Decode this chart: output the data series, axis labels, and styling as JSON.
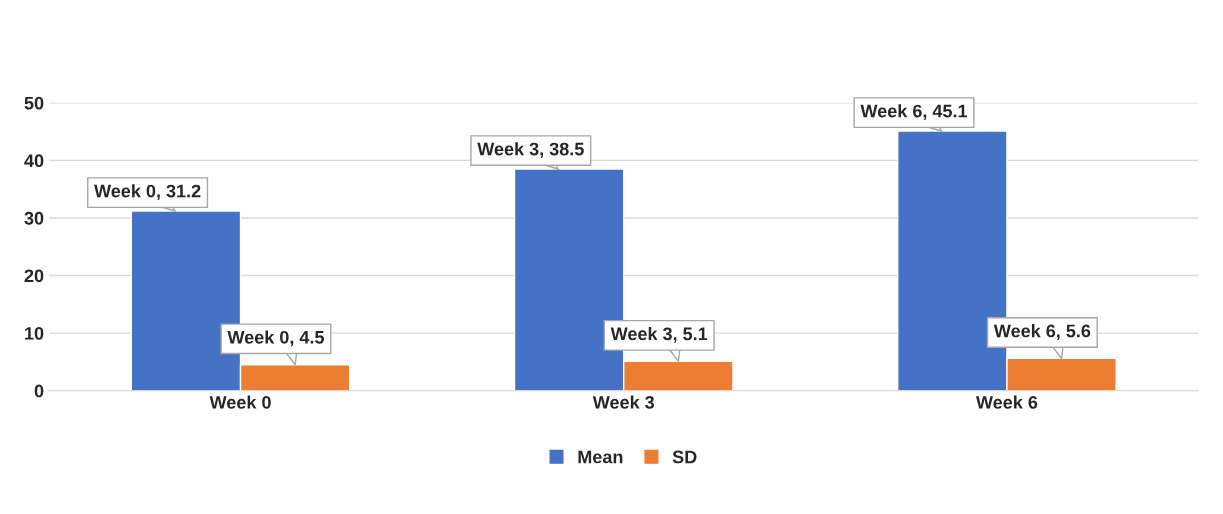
{
  "chart_data": {
    "type": "bar",
    "categories": [
      "Week 0",
      "Week 3",
      "Week 6"
    ],
    "series": [
      {
        "name": "Mean",
        "color": "#4472c4",
        "values": [
          31.2,
          38.5,
          45.1
        ],
        "value_labels": [
          "Week 0, 31.2",
          "Week 3, 38.5",
          "Week 6, 45.1"
        ]
      },
      {
        "name": "SD",
        "color": "#ed7d31",
        "values": [
          4.5,
          5.1,
          5.6
        ],
        "value_labels": [
          "Week 0, 4.5",
          "Week 3, 5.1",
          "Week 6, 5.6"
        ]
      }
    ],
    "ylim": [
      0,
      50
    ],
    "yticks": [
      0,
      10,
      20,
      30,
      40,
      50
    ],
    "grid": "y",
    "legend": "bottom"
  }
}
